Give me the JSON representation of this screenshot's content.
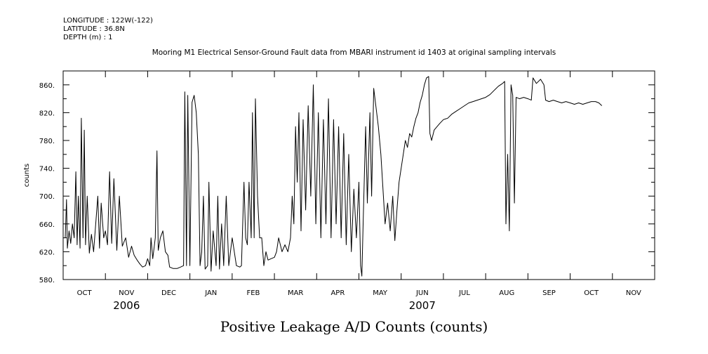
{
  "header": {
    "longitude": "LONGITUDE : 122W(-122)",
    "latitude": "LATITUDE : 36.8N",
    "depth": "DEPTH (m) : 1",
    "title": "Mooring M1 Electrical Sensor-Ground Fault data from MBARI instrument id 1403 at original sampling intervals"
  },
  "footer": {
    "variable_label": "Positive Leakage A/D Counts (counts)"
  },
  "chart_data": {
    "type": "line",
    "title": "Mooring M1 Electrical Sensor-Ground Fault data from MBARI instrument id 1403 at original sampling intervals",
    "xlabel": "",
    "ylabel": "counts",
    "xlim": [
      0,
      14
    ],
    "ylim": [
      580,
      880
    ],
    "y_ticks": [
      580,
      620,
      660,
      700,
      740,
      780,
      820,
      860
    ],
    "y_tick_labels": [
      "580.",
      "620.",
      "660.",
      "700.",
      "740.",
      "780.",
      "820.",
      "860."
    ],
    "x_month_labels": [
      "OCT",
      "NOV",
      "DEC",
      "JAN",
      "FEB",
      "MAR",
      "APR",
      "MAY",
      "JUN",
      "JUL",
      "AUG",
      "SEP",
      "OCT",
      "NOV"
    ],
    "x_year_labels": [
      {
        "label": "2006",
        "month_index": 1
      },
      {
        "label": "2007",
        "month_index": 8
      }
    ],
    "series": [
      {
        "name": "Positive Leakage A/D Counts",
        "x_units": "months since 1 Oct 2006",
        "points": [
          [
            0.05,
            640
          ],
          [
            0.08,
            695
          ],
          [
            0.1,
            625
          ],
          [
            0.14,
            650
          ],
          [
            0.18,
            632
          ],
          [
            0.22,
            660
          ],
          [
            0.26,
            640
          ],
          [
            0.3,
            735
          ],
          [
            0.33,
            630
          ],
          [
            0.36,
            700
          ],
          [
            0.4,
            625
          ],
          [
            0.43,
            812
          ],
          [
            0.47,
            640
          ],
          [
            0.5,
            795
          ],
          [
            0.53,
            630
          ],
          [
            0.57,
            700
          ],
          [
            0.62,
            618
          ],
          [
            0.67,
            645
          ],
          [
            0.72,
            620
          ],
          [
            0.77,
            660
          ],
          [
            0.82,
            700
          ],
          [
            0.86,
            625
          ],
          [
            0.9,
            690
          ],
          [
            0.96,
            640
          ],
          [
            1.0,
            650
          ],
          [
            1.05,
            630
          ],
          [
            1.1,
            735
          ],
          [
            1.15,
            632
          ],
          [
            1.2,
            725
          ],
          [
            1.27,
            622
          ],
          [
            1.33,
            700
          ],
          [
            1.4,
            628
          ],
          [
            1.48,
            640
          ],
          [
            1.55,
            612
          ],
          [
            1.62,
            628
          ],
          [
            1.68,
            615
          ],
          [
            1.75,
            608
          ],
          [
            1.82,
            602
          ],
          [
            1.88,
            598
          ],
          [
            1.95,
            600
          ],
          [
            2.0,
            610
          ],
          [
            2.05,
            600
          ],
          [
            2.08,
            640
          ],
          [
            2.12,
            610
          ],
          [
            2.18,
            640
          ],
          [
            2.22,
            765
          ],
          [
            2.25,
            622
          ],
          [
            2.3,
            640
          ],
          [
            2.36,
            650
          ],
          [
            2.42,
            620
          ],
          [
            2.48,
            615
          ],
          [
            2.52,
            598
          ],
          [
            2.6,
            596
          ],
          [
            2.7,
            596
          ],
          [
            2.78,
            598
          ],
          [
            2.85,
            600
          ],
          [
            2.88,
            850
          ],
          [
            2.92,
            600
          ],
          [
            2.95,
            845
          ],
          [
            3.0,
            600
          ],
          [
            3.05,
            835
          ],
          [
            3.1,
            845
          ],
          [
            3.15,
            820
          ],
          [
            3.2,
            760
          ],
          [
            3.24,
            600
          ],
          [
            3.28,
            620
          ],
          [
            3.32,
            700
          ],
          [
            3.36,
            595
          ],
          [
            3.42,
            600
          ],
          [
            3.45,
            720
          ],
          [
            3.5,
            592
          ],
          [
            3.55,
            650
          ],
          [
            3.62,
            600
          ],
          [
            3.66,
            700
          ],
          [
            3.7,
            595
          ],
          [
            3.75,
            660
          ],
          [
            3.8,
            600
          ],
          [
            3.86,
            700
          ],
          [
            3.92,
            600
          ],
          [
            4.0,
            640
          ],
          [
            4.05,
            620
          ],
          [
            4.1,
            600
          ],
          [
            4.18,
            598
          ],
          [
            4.22,
            600
          ],
          [
            4.28,
            720
          ],
          [
            4.32,
            640
          ],
          [
            4.36,
            630
          ],
          [
            4.4,
            720
          ],
          [
            4.45,
            640
          ],
          [
            4.48,
            820
          ],
          [
            4.52,
            640
          ],
          [
            4.55,
            840
          ],
          [
            4.6,
            700
          ],
          [
            4.65,
            640
          ],
          [
            4.7,
            640
          ],
          [
            4.75,
            600
          ],
          [
            4.8,
            620
          ],
          [
            4.85,
            608
          ],
          [
            4.92,
            610
          ],
          [
            5.0,
            612
          ],
          [
            5.05,
            620
          ],
          [
            5.1,
            640
          ],
          [
            5.18,
            620
          ],
          [
            5.25,
            630
          ],
          [
            5.32,
            620
          ],
          [
            5.38,
            640
          ],
          [
            5.42,
            700
          ],
          [
            5.46,
            660
          ],
          [
            5.5,
            800
          ],
          [
            5.54,
            720
          ],
          [
            5.58,
            820
          ],
          [
            5.63,
            650
          ],
          [
            5.68,
            810
          ],
          [
            5.74,
            680
          ],
          [
            5.8,
            830
          ],
          [
            5.86,
            700
          ],
          [
            5.92,
            860
          ],
          [
            5.98,
            660
          ],
          [
            6.04,
            820
          ],
          [
            6.1,
            640
          ],
          [
            6.16,
            810
          ],
          [
            6.22,
            660
          ],
          [
            6.28,
            840
          ],
          [
            6.34,
            640
          ],
          [
            6.4,
            810
          ],
          [
            6.46,
            660
          ],
          [
            6.52,
            800
          ],
          [
            6.58,
            640
          ],
          [
            6.64,
            790
          ],
          [
            6.7,
            630
          ],
          [
            6.76,
            760
          ],
          [
            6.82,
            620
          ],
          [
            6.88,
            710
          ],
          [
            6.94,
            640
          ],
          [
            7.0,
            720
          ],
          [
            7.04,
            600
          ],
          [
            7.07,
            585
          ],
          [
            7.1,
            660
          ],
          [
            7.16,
            800
          ],
          [
            7.2,
            690
          ],
          [
            7.26,
            820
          ],
          [
            7.3,
            700
          ],
          [
            7.35,
            855
          ],
          [
            7.4,
            830
          ],
          [
            7.46,
            800
          ],
          [
            7.52,
            760
          ],
          [
            7.58,
            700
          ],
          [
            7.62,
            660
          ],
          [
            7.68,
            690
          ],
          [
            7.74,
            650
          ],
          [
            7.8,
            700
          ],
          [
            7.85,
            636
          ],
          [
            7.9,
            680
          ],
          [
            7.95,
            720
          ],
          [
            8.0,
            740
          ],
          [
            8.05,
            760
          ],
          [
            8.1,
            780
          ],
          [
            8.15,
            770
          ],
          [
            8.2,
            790
          ],
          [
            8.25,
            785
          ],
          [
            8.3,
            800
          ],
          [
            8.35,
            812
          ],
          [
            8.4,
            820
          ],
          [
            8.45,
            835
          ],
          [
            8.5,
            845
          ],
          [
            8.55,
            860
          ],
          [
            8.6,
            870
          ],
          [
            8.65,
            872
          ],
          [
            8.68,
            790
          ],
          [
            8.72,
            780
          ],
          [
            8.78,
            795
          ],
          [
            8.85,
            800
          ],
          [
            8.92,
            805
          ],
          [
            9.0,
            810
          ],
          [
            9.1,
            812
          ],
          [
            9.2,
            818
          ],
          [
            9.3,
            822
          ],
          [
            9.4,
            826
          ],
          [
            9.5,
            830
          ],
          [
            9.6,
            834
          ],
          [
            9.7,
            836
          ],
          [
            9.8,
            838
          ],
          [
            9.9,
            840
          ],
          [
            10.0,
            842
          ],
          [
            10.1,
            846
          ],
          [
            10.2,
            852
          ],
          [
            10.3,
            858
          ],
          [
            10.4,
            862
          ],
          [
            10.45,
            865
          ],
          [
            10.48,
            660
          ],
          [
            10.52,
            760
          ],
          [
            10.56,
            650
          ],
          [
            10.6,
            860
          ],
          [
            10.64,
            845
          ],
          [
            10.68,
            690
          ],
          [
            10.72,
            842
          ],
          [
            10.8,
            840
          ],
          [
            10.9,
            842
          ],
          [
            11.0,
            840
          ],
          [
            11.08,
            838
          ],
          [
            11.12,
            870
          ],
          [
            11.2,
            862
          ],
          [
            11.3,
            868
          ],
          [
            11.38,
            860
          ],
          [
            11.42,
            838
          ],
          [
            11.5,
            836
          ],
          [
            11.6,
            838
          ],
          [
            11.7,
            836
          ],
          [
            11.8,
            834
          ],
          [
            11.9,
            836
          ],
          [
            12.0,
            834
          ],
          [
            12.1,
            832
          ],
          [
            12.2,
            834
          ],
          [
            12.3,
            832
          ],
          [
            12.4,
            834
          ],
          [
            12.5,
            836
          ],
          [
            12.6,
            836
          ],
          [
            12.68,
            834
          ],
          [
            12.75,
            830
          ]
        ]
      }
    ]
  }
}
